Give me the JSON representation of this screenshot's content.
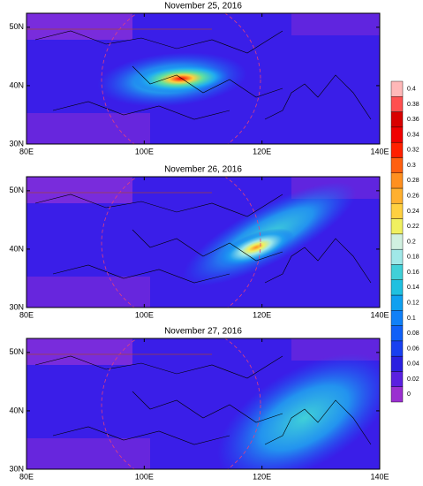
{
  "map": {
    "lon_range": [
      80,
      140
    ],
    "lat_range": [
      30,
      52.4
    ]
  },
  "panels": [
    {
      "title": "November 25, 2016",
      "lon_ticks": [
        {
          "value": 80,
          "label": "80E"
        },
        {
          "value": 100,
          "label": "100E"
        },
        {
          "value": 120,
          "label": "120E"
        },
        {
          "value": 140,
          "label": "140E"
        }
      ],
      "lat_ticks": [
        {
          "value": 30,
          "label": "30N"
        },
        {
          "value": 40,
          "label": "40N"
        },
        {
          "value": 50,
          "label": "50N"
        }
      ]
    },
    {
      "title": "November 26, 2016",
      "lon_ticks": [
        {
          "value": 80,
          "label": "80E"
        },
        {
          "value": 100,
          "label": "100E"
        },
        {
          "value": 120,
          "label": "120E"
        },
        {
          "value": 140,
          "label": "140E"
        }
      ],
      "lat_ticks": [
        {
          "value": 30,
          "label": "30N"
        },
        {
          "value": 40,
          "label": "40N"
        },
        {
          "value": 50,
          "label": "50N"
        }
      ]
    },
    {
      "title": "November 27, 2016",
      "lon_ticks": [
        {
          "value": 80,
          "label": "80E"
        },
        {
          "value": 100,
          "label": "100E"
        },
        {
          "value": 120,
          "label": "120E"
        },
        {
          "value": 140,
          "label": "140E"
        }
      ],
      "lat_ticks": [
        {
          "value": 30,
          "label": "30N"
        },
        {
          "value": 40,
          "label": "40N"
        },
        {
          "value": 50,
          "label": "50N"
        }
      ]
    }
  ],
  "colorbar": {
    "ticks": [
      0,
      0.02,
      0.04,
      0.06,
      0.08,
      0.1,
      0.12,
      0.14,
      0.16,
      0.18,
      0.2,
      0.22,
      0.24,
      0.26,
      0.28,
      0.3,
      0.32,
      0.34,
      0.36,
      0.38,
      0.4
    ],
    "colors": [
      "#9a30d0",
      "#5a20e0",
      "#2a20e0",
      "#1840f0",
      "#1060f8",
      "#1080f8",
      "#10a0f0",
      "#20c0e0",
      "#40d0d8",
      "#a0e8e8",
      "#d0f0e0",
      "#f0f060",
      "#ffd040",
      "#ffb030",
      "#ff9020",
      "#ff6010",
      "#ff2000",
      "#f00000",
      "#d80000",
      "#ff5050",
      "#ffb8b8"
    ]
  }
}
